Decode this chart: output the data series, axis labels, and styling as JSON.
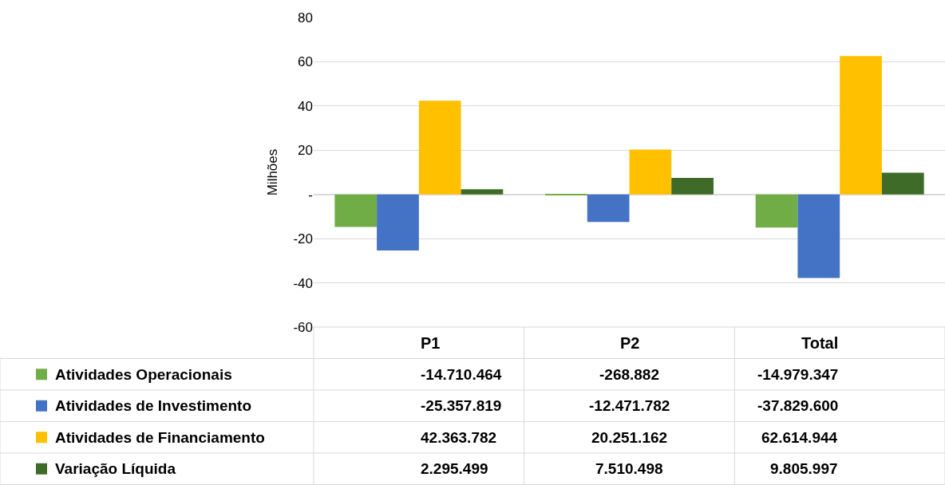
{
  "chart_data": {
    "type": "bar",
    "ylabel": "Milhões",
    "categories": [
      "P1",
      "P2",
      "Total"
    ],
    "legend": "bottom left",
    "series": [
      {
        "name": "Atividades Operacionais",
        "color": "#70ad47",
        "values": [
          -14.710464,
          -0.268882,
          -14.979347
        ]
      },
      {
        "name": "Atividades de Investimento",
        "color": "#4472c4",
        "values": [
          -25.357819,
          -12.471782,
          -37.8296
        ]
      },
      {
        "name": "Atividades de Financiamento",
        "color": "#ffc000",
        "values": [
          42.363782,
          20.251162,
          62.614944
        ]
      },
      {
        "name": "Variação Líquida",
        "color": "#3e6b27",
        "values": [
          2.295499,
          7.510498,
          9.805997
        ]
      }
    ],
    "annotations": [
      "-14.710.464",
      "-268.882",
      "-14.979.347",
      "-25.357.819",
      "-12.471.782",
      "-37.829.600",
      "42.363.782",
      "20.251.162",
      "62.614.944",
      "2.295.499",
      "7.510.498",
      "9.805.997"
    ],
    "ylim": [
      -60,
      80
    ],
    "yticks": [
      -60,
      -40,
      -20,
      {
        "value": 0,
        "label": "-"
      },
      20,
      40,
      60,
      80
    ],
    "grid": "y"
  }
}
